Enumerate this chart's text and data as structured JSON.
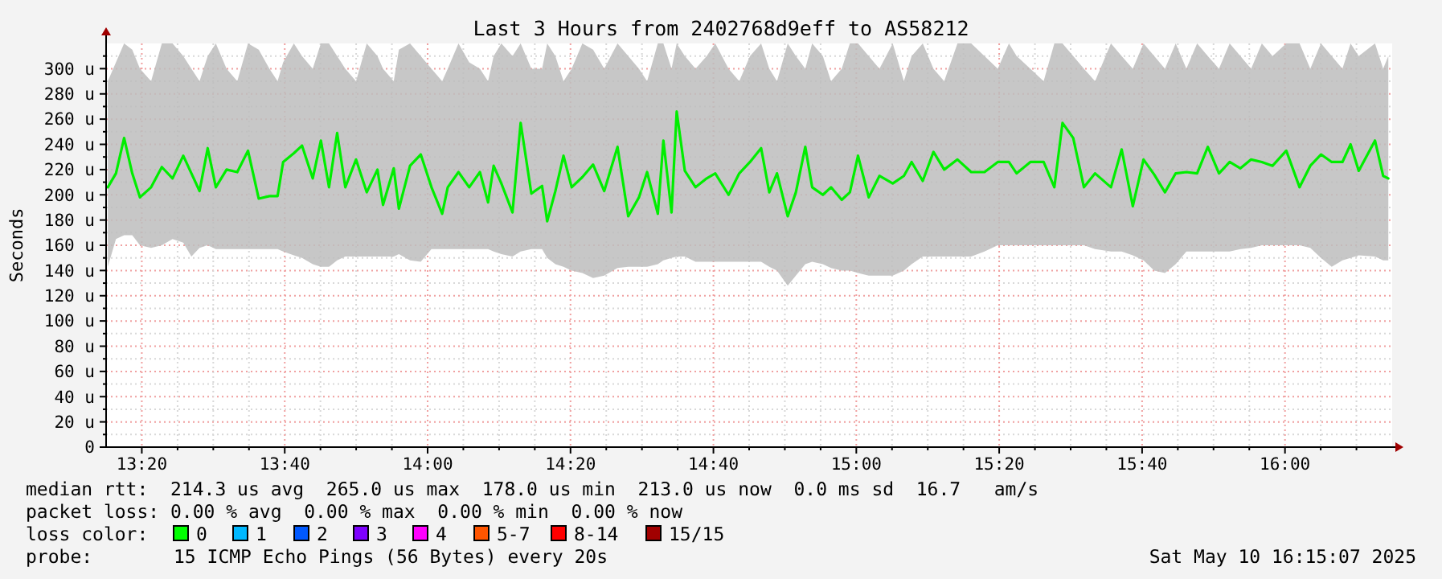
{
  "chart_data": {
    "type": "line",
    "title": "Last 3 Hours from 2402768d9eff to AS58212",
    "ylabel": "Seconds",
    "xlim": [
      13.25,
      16.25
    ],
    "ylim": [
      0,
      320
    ],
    "grid": true,
    "xticks": [
      {
        "value": 13.3333,
        "label": "13:20"
      },
      {
        "value": 13.6667,
        "label": "13:40"
      },
      {
        "value": 14,
        "label": "14:00"
      },
      {
        "value": 14.3333,
        "label": "14:20"
      },
      {
        "value": 14.6667,
        "label": "14:40"
      },
      {
        "value": 15,
        "label": "15:00"
      },
      {
        "value": 15.3333,
        "label": "15:20"
      },
      {
        "value": 15.6667,
        "label": "15:40"
      },
      {
        "value": 16,
        "label": "16:00"
      },
      {
        "value": 13.4167,
        "label": null
      },
      {
        "value": 13.5,
        "label": null
      },
      {
        "value": 13.5833,
        "label": null
      },
      {
        "value": 13.75,
        "label": null
      },
      {
        "value": 13.8333,
        "label": null
      },
      {
        "value": 13.9167,
        "label": null
      },
      {
        "value": 14.0833,
        "label": null
      },
      {
        "value": 14.1667,
        "label": null
      },
      {
        "value": 14.25,
        "label": null
      },
      {
        "value": 14.4167,
        "label": null
      },
      {
        "value": 14.5,
        "label": null
      },
      {
        "value": 14.5833,
        "label": null
      },
      {
        "value": 14.75,
        "label": null
      },
      {
        "value": 14.8333,
        "label": null
      },
      {
        "value": 14.9167,
        "label": null
      },
      {
        "value": 15.0833,
        "label": null
      },
      {
        "value": 15.1667,
        "label": null
      },
      {
        "value": 15.25,
        "label": null
      },
      {
        "value": 15.4167,
        "label": null
      },
      {
        "value": 15.5,
        "label": null
      },
      {
        "value": 15.5833,
        "label": null
      },
      {
        "value": 15.75,
        "label": null
      },
      {
        "value": 15.8333,
        "label": null
      },
      {
        "value": 15.9167,
        "label": null
      },
      {
        "value": 16.0833,
        "label": null
      },
      {
        "value": 16.1667,
        "label": null
      }
    ],
    "yticks": [
      0,
      {
        "value": 20,
        "label": "20 u"
      },
      {
        "value": 40,
        "label": "40 u"
      },
      {
        "value": 60,
        "label": "60 u"
      },
      {
        "value": 80,
        "label": "80 u"
      },
      {
        "value": 100,
        "label": "100 u"
      },
      {
        "value": 120,
        "label": "120 u"
      },
      {
        "value": 140,
        "label": "140 u"
      },
      {
        "value": 160,
        "label": "160 u"
      },
      {
        "value": 180,
        "label": "180 u"
      },
      {
        "value": 200,
        "label": "200 u"
      },
      {
        "value": 220,
        "label": "220 u"
      },
      {
        "value": 240,
        "label": "240 u"
      },
      {
        "value": 260,
        "label": "260 u"
      },
      {
        "value": 280,
        "label": "280 u"
      },
      {
        "value": 300,
        "label": "300 u"
      },
      {
        "value": 10,
        "label": null
      },
      {
        "value": 30,
        "label": null
      },
      {
        "value": 50,
        "label": null
      },
      {
        "value": 70,
        "label": null
      },
      {
        "value": 90,
        "label": null
      },
      {
        "value": 110,
        "label": null
      },
      {
        "value": 130,
        "label": null
      },
      {
        "value": 150,
        "label": null
      },
      {
        "value": 170,
        "label": null
      },
      {
        "value": 190,
        "label": null
      },
      {
        "value": 210,
        "label": null
      },
      {
        "value": 230,
        "label": null
      },
      {
        "value": 250,
        "label": null
      },
      {
        "value": 270,
        "label": null
      },
      {
        "value": 290,
        "label": null
      },
      {
        "value": 310,
        "label": null
      }
    ],
    "series": [
      {
        "color": "#00ee00",
        "x": [
          13.254,
          13.273,
          13.292,
          13.311,
          13.329,
          13.355,
          13.38,
          13.405,
          13.43,
          13.449,
          13.468,
          13.487,
          13.506,
          13.531,
          13.556,
          13.581,
          13.606,
          13.631,
          13.65,
          13.663,
          13.688,
          13.707,
          13.732,
          13.751,
          13.77,
          13.789,
          13.808,
          13.833,
          13.858,
          13.883,
          13.896,
          13.921,
          13.933,
          13.959,
          13.984,
          14.009,
          14.034,
          14.047,
          14.072,
          14.097,
          14.122,
          14.141,
          14.154,
          14.172,
          14.198,
          14.217,
          14.242,
          14.267,
          14.279,
          14.298,
          14.317,
          14.336,
          14.361,
          14.386,
          14.412,
          14.443,
          14.468,
          14.493,
          14.512,
          14.537,
          14.55,
          14.569,
          14.581,
          14.6,
          14.625,
          14.651,
          14.671,
          14.702,
          14.727,
          14.752,
          14.778,
          14.797,
          14.815,
          14.84,
          14.859,
          14.881,
          14.897,
          14.922,
          14.941,
          14.966,
          14.985,
          15.004,
          15.029,
          15.054,
          15.085,
          15.111,
          15.129,
          15.155,
          15.18,
          15.205,
          15.236,
          15.268,
          15.299,
          15.33,
          15.356,
          15.374,
          15.406,
          15.437,
          15.462,
          15.481,
          15.506,
          15.531,
          15.557,
          15.594,
          15.619,
          15.645,
          15.67,
          15.695,
          15.72,
          15.745,
          15.77,
          15.795,
          15.82,
          15.846,
          15.871,
          15.896,
          15.921,
          15.946,
          15.971,
          16.003,
          16.034,
          16.059,
          16.084,
          16.109,
          16.134,
          16.153,
          16.172,
          16.21,
          16.229,
          16.241
        ],
        "values": [
          206,
          217,
          245,
          217,
          198,
          206,
          222,
          213,
          231,
          217,
          203,
          237,
          206,
          220,
          218,
          235,
          197,
          199,
          199,
          226,
          233,
          239,
          213,
          243,
          206,
          249,
          206,
          228,
          202,
          220,
          192,
          221,
          189,
          223,
          232,
          206,
          185,
          206,
          218,
          206,
          218,
          194,
          223,
          209,
          186,
          257,
          201,
          207,
          179,
          203,
          231,
          206,
          214,
          224,
          203,
          238,
          183,
          198,
          218,
          185,
          243,
          186,
          266,
          219,
          206,
          213,
          217,
          200,
          217,
          226,
          237,
          202,
          217,
          183,
          202,
          238,
          206,
          200,
          206,
          196,
          202,
          231,
          198,
          215,
          209,
          215,
          226,
          211,
          234,
          220,
          228,
          218,
          218,
          226,
          226,
          217,
          226,
          226,
          206,
          257,
          245,
          206,
          217,
          206,
          236,
          191,
          228,
          216,
          202,
          217,
          218,
          217,
          238,
          217,
          226,
          221,
          228,
          226,
          223,
          235,
          206,
          223,
          232,
          226,
          226,
          240,
          219,
          243,
          215,
          213
        ],
        "lower": [
          143,
          165,
          168,
          168,
          160,
          158,
          160,
          165,
          162,
          151,
          158,
          160,
          157,
          157,
          157,
          157,
          157,
          157,
          157,
          155,
          152,
          150,
          145,
          143,
          143,
          148,
          151,
          151,
          151,
          151,
          151,
          151,
          153,
          148,
          147,
          157,
          157,
          157,
          157,
          157,
          157,
          157,
          155,
          153,
          151,
          155,
          157,
          157,
          150,
          145,
          143,
          140,
          138,
          134,
          136,
          142,
          143,
          143,
          143,
          145,
          148,
          150,
          151,
          151,
          147,
          147,
          147,
          147,
          147,
          147,
          147,
          143,
          140,
          128,
          136,
          145,
          147,
          145,
          142,
          140,
          140,
          138,
          136,
          136,
          136,
          140,
          145,
          151,
          151,
          151,
          151,
          151,
          155,
          160,
          160,
          160,
          160,
          160,
          160,
          160,
          160,
          160,
          157,
          155,
          155,
          152,
          148,
          140,
          138,
          145,
          155,
          155,
          155,
          155,
          155,
          157,
          158,
          160,
          160,
          160,
          160,
          158,
          150,
          143,
          148,
          150,
          152,
          151,
          148,
          148
        ],
        "upper": [
          290,
          305,
          320,
          315,
          300,
          290,
          320,
          320,
          310,
          300,
          290,
          310,
          320,
          300,
          290,
          320,
          315,
          300,
          290,
          305,
          320,
          310,
          300,
          320,
          320,
          310,
          300,
          290,
          320,
          310,
          300,
          290,
          315,
          320,
          310,
          300,
          290,
          300,
          320,
          305,
          300,
          290,
          310,
          320,
          310,
          320,
          300,
          300,
          320,
          310,
          290,
          300,
          320,
          315,
          300,
          320,
          310,
          300,
          290,
          320,
          320,
          300,
          320,
          310,
          300,
          310,
          320,
          300,
          290,
          310,
          320,
          300,
          290,
          320,
          310,
          300,
          320,
          310,
          290,
          300,
          320,
          320,
          310,
          300,
          320,
          290,
          310,
          320,
          300,
          290,
          320,
          320,
          310,
          300,
          320,
          310,
          300,
          290,
          320,
          320,
          310,
          300,
          290,
          320,
          310,
          300,
          320,
          310,
          300,
          320,
          300,
          320,
          310,
          300,
          320,
          310,
          300,
          320,
          310,
          320,
          320,
          300,
          320,
          310,
          300,
          320,
          310,
          320,
          300,
          310
        ]
      }
    ],
    "annotations": [
      "median rtt:  214.3 us avg  265.0 us max  178.0 us min  213.0 us now  0.0 ms sd  16.7   am/s",
      "packet loss: 0.00 % avg  0.00 % max  0.00 % min  0.00 % now",
      "loss color:",
      "0",
      "1",
      "2",
      "3",
      "4",
      "5-7",
      "8-14",
      "15/15",
      "probe:",
      "15 ICMP Echo Pings (56 Bytes) every 20s",
      "Sat May 10 16:15:07 2025"
    ]
  }
}
